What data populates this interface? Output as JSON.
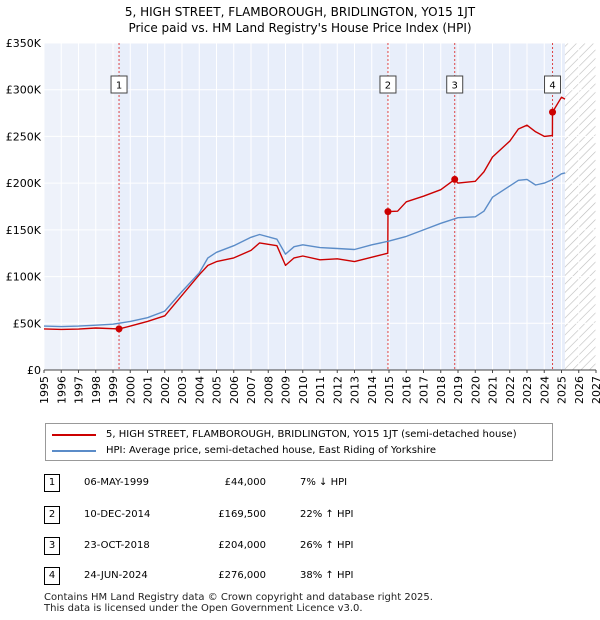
{
  "title_line1": "5, HIGH STREET, FLAMBOROUGH, BRIDLINGTON, YO15 1JT",
  "title_line2": "Price paid vs. HM Land Registry's House Price Index (HPI)",
  "colors": {
    "red": "#cc0000",
    "blue": "#5b8cc8",
    "shade": "#e8eefa",
    "grid": "#ffffff",
    "marker_line": "#dd4444"
  },
  "legend": {
    "red_label": "5, HIGH STREET, FLAMBOROUGH, BRIDLINGTON, YO15 1JT (semi-detached house)",
    "blue_label": "HPI: Average price, semi-detached house, East Riding of Yorkshire"
  },
  "sales": [
    {
      "num": "1",
      "date": "06-MAY-1999",
      "price": "£44,000",
      "hpi": "7% ↓ HPI"
    },
    {
      "num": "2",
      "date": "10-DEC-2014",
      "price": "£169,500",
      "hpi": "22% ↑ HPI"
    },
    {
      "num": "3",
      "date": "23-OCT-2018",
      "price": "£204,000",
      "hpi": "26% ↑ HPI"
    },
    {
      "num": "4",
      "date": "24-JUN-2024",
      "price": "£276,000",
      "hpi": "38% ↑ HPI"
    }
  ],
  "footer_line1": "Contains HM Land Registry data © Crown copyright and database right 2025.",
  "footer_line2": "This data is licensed under the Open Government Licence v3.0.",
  "chart_data": {
    "type": "line",
    "title": "5, HIGH STREET, FLAMBOROUGH, BRIDLINGTON, YO15 1JT — Price paid vs. HM Land Registry's House Price Index (HPI)",
    "xlabel": "",
    "ylabel": "",
    "xlim": [
      1995,
      2027
    ],
    "ylim": [
      0,
      350000
    ],
    "x_ticks": [
      "1995",
      "1996",
      "1997",
      "1998",
      "1999",
      "2000",
      "2001",
      "2002",
      "2003",
      "2004",
      "2005",
      "2006",
      "2007",
      "2008",
      "2009",
      "2010",
      "2011",
      "2012",
      "2013",
      "2014",
      "2015",
      "2016",
      "2017",
      "2018",
      "2019",
      "2020",
      "2021",
      "2022",
      "2023",
      "2024",
      "2025",
      "2026",
      "2027"
    ],
    "y_ticks": [
      {
        "value": 0,
        "label": "£0"
      },
      {
        "value": 50000,
        "label": "£50K"
      },
      {
        "value": 100000,
        "label": "£100K"
      },
      {
        "value": 150000,
        "label": "£150K"
      },
      {
        "value": 200000,
        "label": "£200K"
      },
      {
        "value": 250000,
        "label": "£250K"
      },
      {
        "value": 300000,
        "label": "£300K"
      },
      {
        "value": 350000,
        "label": "£350K"
      }
    ],
    "shaded_from": 1999.35,
    "hatch_from": 2025.2,
    "transactions": [
      {
        "label": "1",
        "x": 1999.35,
        "y": 44000
      },
      {
        "label": "2",
        "x": 2014.94,
        "y": 169500
      },
      {
        "label": "3",
        "x": 2018.81,
        "y": 204000
      },
      {
        "label": "4",
        "x": 2024.48,
        "y": 276000
      }
    ],
    "series": [
      {
        "name": "5, HIGH STREET, FLAMBOROUGH, BRIDLINGTON, YO15 1JT (semi-detached house)",
        "color": "#cc0000",
        "points": [
          [
            1995,
            44000
          ],
          [
            1996,
            43500
          ],
          [
            1997,
            43800
          ],
          [
            1998,
            45000
          ],
          [
            1999.35,
            44000
          ],
          [
            2000,
            47000
          ],
          [
            2001,
            52000
          ],
          [
            2002,
            58000
          ],
          [
            2003,
            80000
          ],
          [
            2004,
            102000
          ],
          [
            2004.5,
            112000
          ],
          [
            2005,
            116000
          ],
          [
            2006,
            120000
          ],
          [
            2007,
            128000
          ],
          [
            2007.5,
            136000
          ],
          [
            2008.5,
            133000
          ],
          [
            2009,
            112000
          ],
          [
            2009.5,
            120000
          ],
          [
            2010,
            122000
          ],
          [
            2011,
            118000
          ],
          [
            2012,
            119000
          ],
          [
            2013,
            116000
          ],
          [
            2014.5,
            123000
          ],
          [
            2014.93,
            125000
          ],
          [
            2014.94,
            169500
          ],
          [
            2015.5,
            170000
          ],
          [
            2016,
            180000
          ],
          [
            2017,
            186000
          ],
          [
            2018,
            193000
          ],
          [
            2018.81,
            204000
          ],
          [
            2019,
            200000
          ],
          [
            2020,
            202000
          ],
          [
            2020.5,
            212000
          ],
          [
            2021,
            228000
          ],
          [
            2022,
            245000
          ],
          [
            2022.5,
            258000
          ],
          [
            2023,
            262000
          ],
          [
            2023.5,
            255000
          ],
          [
            2024,
            250000
          ],
          [
            2024.47,
            251000
          ],
          [
            2024.48,
            276000
          ],
          [
            2025,
            292000
          ],
          [
            2025.2,
            290000
          ]
        ]
      },
      {
        "name": "HPI: Average price, semi-detached house, East Riding of Yorkshire",
        "color": "#5b8cc8",
        "points": [
          [
            1995,
            47000
          ],
          [
            1996,
            46500
          ],
          [
            1997,
            47000
          ],
          [
            1998,
            48000
          ],
          [
            1999,
            49000
          ],
          [
            2000,
            52000
          ],
          [
            2001,
            56000
          ],
          [
            2002,
            63000
          ],
          [
            2003,
            84000
          ],
          [
            2004,
            104000
          ],
          [
            2004.5,
            120000
          ],
          [
            2005,
            126000
          ],
          [
            2006,
            133000
          ],
          [
            2007,
            142000
          ],
          [
            2007.5,
            145000
          ],
          [
            2008.5,
            140000
          ],
          [
            2009,
            124000
          ],
          [
            2009.5,
            132000
          ],
          [
            2010,
            134000
          ],
          [
            2011,
            131000
          ],
          [
            2012,
            130000
          ],
          [
            2013,
            129000
          ],
          [
            2014,
            134000
          ],
          [
            2015,
            138000
          ],
          [
            2016,
            143000
          ],
          [
            2017,
            150000
          ],
          [
            2018,
            157000
          ],
          [
            2019,
            163000
          ],
          [
            2020,
            164000
          ],
          [
            2020.5,
            170000
          ],
          [
            2021,
            185000
          ],
          [
            2022,
            197000
          ],
          [
            2022.5,
            203000
          ],
          [
            2023,
            204000
          ],
          [
            2023.5,
            198000
          ],
          [
            2024,
            200000
          ],
          [
            2024.5,
            204000
          ],
          [
            2025,
            210000
          ],
          [
            2025.2,
            211000
          ]
        ]
      }
    ]
  }
}
